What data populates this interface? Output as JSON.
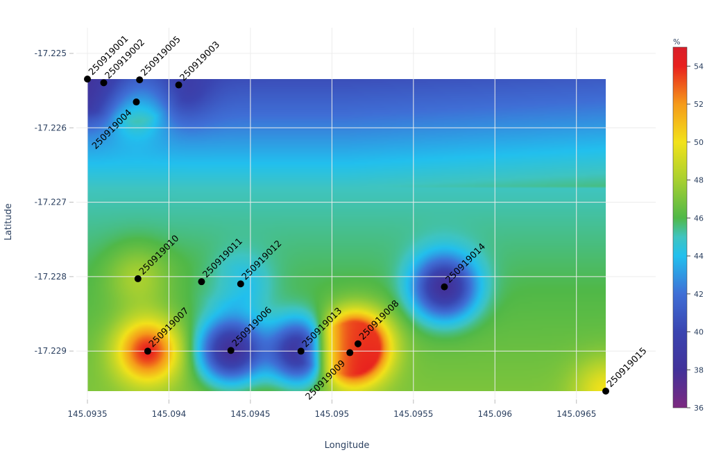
{
  "chart_data": {
    "type": "heatmap",
    "subtype": "contour",
    "xlabel": "Longitude",
    "ylabel": "Latitude",
    "xlim": [
      145.0935,
      145.09668
    ],
    "ylim": [
      -17.22957,
      -17.22535
    ],
    "x_ticks": [
      "145.0935",
      "145.094",
      "145.0945",
      "145.095",
      "145.0955",
      "145.096",
      "145.0965"
    ],
    "x_tick_values": [
      145.0935,
      145.094,
      145.0945,
      145.095,
      145.0955,
      145.096,
      145.0965
    ],
    "y_ticks": [
      "-17.225",
      "-17.226",
      "-17.227",
      "-17.228",
      "-17.229"
    ],
    "y_tick_values": [
      -17.225,
      -17.226,
      -17.227,
      -17.228,
      -17.229
    ],
    "colorbar": {
      "title": "%",
      "range": [
        36,
        55
      ],
      "ticks": [
        "36",
        "38",
        "40",
        "42",
        "44",
        "46",
        "48",
        "50",
        "52",
        "54"
      ],
      "tick_values": [
        36,
        38,
        40,
        42,
        44,
        46,
        48,
        50,
        52,
        54
      ],
      "colorscale": [
        [
          36,
          "#7d2a80"
        ],
        [
          38,
          "#42329a"
        ],
        [
          40,
          "#3a44b0"
        ],
        [
          42,
          "#3f6fd6"
        ],
        [
          44,
          "#22c0ee"
        ],
        [
          45,
          "#3fc4c0"
        ],
        [
          46,
          "#50b848"
        ],
        [
          48,
          "#a8d030"
        ],
        [
          50,
          "#f2e21a"
        ],
        [
          52,
          "#f59a1a"
        ],
        [
          54,
          "#e8201e"
        ],
        [
          55,
          "#d81e2a"
        ]
      ]
    },
    "points": [
      {
        "label": "250919001",
        "lon": 145.0935,
        "lat": -17.22535,
        "value": 38
      },
      {
        "label": "250919002",
        "lon": 145.0936,
        "lat": -17.2254,
        "value": 38
      },
      {
        "label": "250919005",
        "lon": 145.09382,
        "lat": -17.22536,
        "value": 39
      },
      {
        "label": "250919004",
        "lon": 145.0938,
        "lat": -17.22566,
        "value": 48
      },
      {
        "label": "250919003",
        "lon": 145.09406,
        "lat": -17.22543,
        "value": 39
      },
      {
        "label": "250919010",
        "lon": 145.09381,
        "lat": -17.22805,
        "value": 48
      },
      {
        "label": "250919011",
        "lon": 145.0942,
        "lat": -17.22809,
        "value": 46
      },
      {
        "label": "250919012",
        "lon": 145.09444,
        "lat": -17.22812,
        "value": 44
      },
      {
        "label": "250919014",
        "lon": 145.09569,
        "lat": -17.22816,
        "value": 38
      },
      {
        "label": "250919007",
        "lon": 145.09387,
        "lat": -17.22903,
        "value": 54
      },
      {
        "label": "250919006",
        "lon": 145.09438,
        "lat": -17.22902,
        "value": 38
      },
      {
        "label": "250919013",
        "lon": 145.09481,
        "lat": -17.22903,
        "value": 38
      },
      {
        "label": "250919009",
        "lon": 145.09511,
        "lat": -17.22905,
        "value": 55
      },
      {
        "label": "250919008",
        "lon": 145.09516,
        "lat": -17.22893,
        "value": 53
      },
      {
        "label": "250919015",
        "lon": 145.09668,
        "lat": -17.22957,
        "value": 50
      }
    ],
    "grid": true
  }
}
